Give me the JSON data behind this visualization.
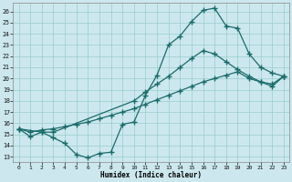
{
  "xlabel": "Humidex (Indice chaleur)",
  "bg_color": "#cce8ee",
  "grid_color": "#99cccc",
  "line_color": "#1a6b6b",
  "marker": "+",
  "markersize": 4,
  "markeredgewidth": 1.0,
  "linewidth": 0.9,
  "xlim": [
    -0.5,
    23.5
  ],
  "ylim": [
    12.5,
    26.8
  ],
  "yticks": [
    13,
    14,
    15,
    16,
    17,
    18,
    19,
    20,
    21,
    22,
    23,
    24,
    25,
    26
  ],
  "xticks": [
    0,
    1,
    2,
    3,
    4,
    5,
    6,
    7,
    8,
    9,
    10,
    11,
    12,
    13,
    14,
    15,
    16,
    17,
    18,
    19,
    20,
    21,
    22,
    23
  ],
  "line1_x": [
    0,
    1,
    2,
    3,
    4,
    5,
    6,
    7,
    8,
    9,
    10,
    11,
    12,
    13,
    14,
    15,
    16,
    17,
    18,
    19,
    20,
    21,
    22,
    23
  ],
  "line1_y": [
    15.5,
    14.8,
    15.2,
    14.7,
    14.2,
    13.2,
    12.9,
    13.3,
    13.4,
    15.9,
    16.1,
    18.5,
    20.3,
    23.0,
    23.8,
    25.1,
    26.1,
    26.3,
    24.7,
    24.5,
    22.2,
    21.0,
    20.5,
    20.2
  ],
  "line2_x": [
    0,
    2,
    3,
    10,
    11,
    12,
    13,
    14,
    15,
    16,
    17,
    18,
    19,
    20,
    21,
    22,
    23
  ],
  "line2_y": [
    15.5,
    15.2,
    15.2,
    18.0,
    18.8,
    19.5,
    20.2,
    21.0,
    21.8,
    22.5,
    22.2,
    21.5,
    20.8,
    20.2,
    19.7,
    19.3,
    20.2
  ],
  "line3_x": [
    0,
    1,
    2,
    3,
    4,
    5,
    6,
    7,
    8,
    9,
    10,
    11,
    12,
    13,
    14,
    15,
    16,
    17,
    18,
    19,
    20,
    21,
    22,
    23
  ],
  "line3_y": [
    15.5,
    15.2,
    15.4,
    15.5,
    15.7,
    15.9,
    16.1,
    16.4,
    16.7,
    17.0,
    17.3,
    17.7,
    18.1,
    18.5,
    18.9,
    19.3,
    19.7,
    20.0,
    20.3,
    20.6,
    20.0,
    19.7,
    19.5,
    20.2
  ]
}
